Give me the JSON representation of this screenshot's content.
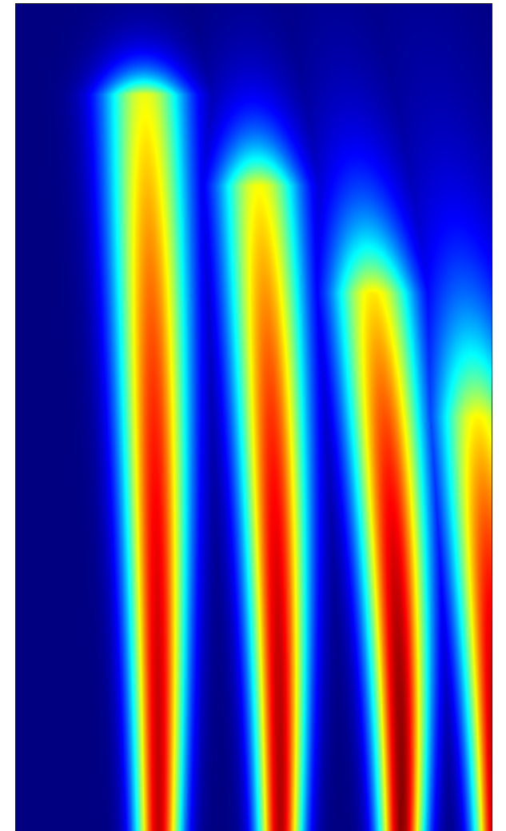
{
  "chart_data": {
    "type": "heatmap",
    "title": "",
    "xlabel": "",
    "ylabel": "",
    "colormap": "jet",
    "colorbar": false,
    "grid": false,
    "xlim": [
      0,
      1
    ],
    "ylim": [
      0,
      1
    ],
    "x_samples": [
      0.0,
      0.05,
      0.1,
      0.15,
      0.2,
      0.25,
      0.3,
      0.35,
      0.4,
      0.45,
      0.5,
      0.55,
      0.6,
      0.65,
      0.7,
      0.75,
      0.8,
      0.85,
      0.9,
      0.95,
      1.0
    ],
    "y_samples": [
      0.0,
      0.1,
      0.2,
      0.3,
      0.4,
      0.5,
      0.6,
      0.7,
      0.8,
      0.9,
      1.0
    ],
    "z_range": [
      0,
      1
    ],
    "lobes": [
      {
        "center": 0.3,
        "width": 0.048,
        "peak": 0.93,
        "tip": 0.89,
        "lean": 0.03
      },
      {
        "center": 0.555,
        "width": 0.047,
        "peak": 0.95,
        "tip": 0.78,
        "lean": 0.045
      },
      {
        "center": 0.81,
        "width": 0.048,
        "peak": 0.99,
        "tip": 0.65,
        "lean": 0.06
      },
      {
        "center": 1.01,
        "width": 0.048,
        "peak": 0.97,
        "tip": 0.5,
        "lean": 0.04
      }
    ],
    "background_value": 0.0,
    "colors": {
      "min": "#00007f",
      "max": "#7f0000"
    }
  }
}
